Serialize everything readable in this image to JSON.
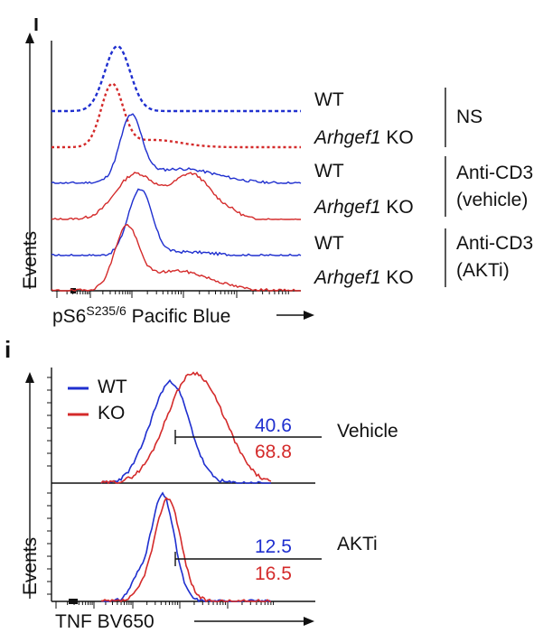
{
  "panel_top": {
    "letter": "",
    "rows": [
      {
        "label": "WT",
        "italic_part": "",
        "color": "#1f2fcf",
        "style": "dotted"
      },
      {
        "label": " KO",
        "italic_part": "Arhgef1",
        "color": "#d42a2a",
        "style": "dotted"
      },
      {
        "label": "WT",
        "italic_part": "",
        "color": "#1f2fcf",
        "style": "solid"
      },
      {
        "label": " KO",
        "italic_part": "Arhgef1",
        "color": "#d42a2a",
        "style": "solid"
      },
      {
        "label": "WT",
        "italic_part": "",
        "color": "#1f2fcf",
        "style": "solid"
      },
      {
        "label": " KO",
        "italic_part": "Arhgef1",
        "color": "#d42a2a",
        "style": "solid"
      }
    ],
    "groups": [
      {
        "line1": "NS",
        "line2": ""
      },
      {
        "line1": "Anti-CD3",
        "line2": "(vehicle)"
      },
      {
        "line1": "Anti-CD3",
        "line2": "(AKTi)"
      }
    ],
    "y_label": "Events",
    "x_label_main": "pS6",
    "x_label_sup": "S235/6",
    "x_label_rest": " Pacific Blue"
  },
  "panel_bottom": {
    "letter": "i",
    "legend": [
      {
        "name": "WT",
        "color": "#1f2fcf"
      },
      {
        "name": "KO",
        "color": "#d42a2a"
      }
    ],
    "subpanels": [
      {
        "condition": "Vehicle",
        "wt_percent": "40.6",
        "ko_percent": "68.8"
      },
      {
        "condition": "AKTi",
        "wt_percent": "12.5",
        "ko_percent": "16.5"
      }
    ],
    "y_label": "Events",
    "x_label": "TNF BV650"
  },
  "colors": {
    "wt": "#1f2fcf",
    "ko": "#d42a2a",
    "axis": "#111111"
  },
  "chart_data": [
    {
      "type": "line",
      "chart": "offset histogram overlay",
      "xlabel": "pS6 S235/6 Pacific Blue",
      "ylabel": "Events",
      "x_scale": "log",
      "series": [
        {
          "name": "WT NS",
          "peak_x": 0.28,
          "shape": "narrow",
          "style": "dotted",
          "values": []
        },
        {
          "name": "Arhgef1 KO NS",
          "peak_x": 0.22,
          "shape": "narrow",
          "style": "dotted",
          "values": []
        },
        {
          "name": "WT Anti-CD3 (vehicle)",
          "peak_x": 0.31,
          "shape": "tail",
          "values": []
        },
        {
          "name": "Arhgef1 KO Anti-CD3 (vehicle)",
          "peak_x": 0.4,
          "shape": "broad",
          "values": []
        },
        {
          "name": "WT Anti-CD3 (AKTi)",
          "peak_x": 0.37,
          "shape": "narrow",
          "values": []
        },
        {
          "name": "Arhgef1 KO Anti-CD3 (AKTi)",
          "peak_x": 0.31,
          "shape": "tail",
          "values": []
        }
      ]
    },
    {
      "type": "line",
      "chart": "histogram overlay with gate",
      "xlabel": "TNF BV650",
      "ylabel": "Events",
      "subpanels": [
        {
          "condition": "Vehicle",
          "gate_percent_wt": 40.6,
          "gate_percent_ko": 68.8
        },
        {
          "condition": "AKTi",
          "gate_percent_wt": 12.5,
          "gate_percent_ko": 16.5
        }
      ]
    }
  ]
}
